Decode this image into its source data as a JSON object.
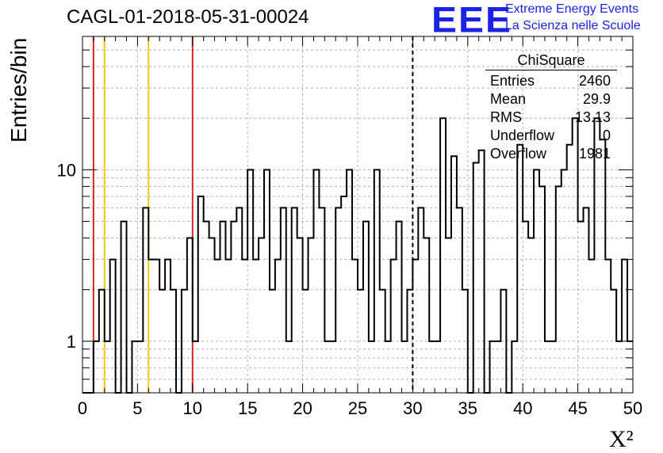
{
  "header": {
    "title": "CAGL-01-2018-05-31-00024",
    "logo_text": "EEE",
    "org_line1": "Extreme Energy Events",
    "org_line2": "La Scienza nelle Scuole"
  },
  "colors": {
    "logo": "#1a22e8",
    "red_line": "#e0211d",
    "yellow_line": "#f2c618",
    "histogram": "#000000",
    "grid": "#b0b0b0"
  },
  "stats_box": {
    "title": "ChiSquare",
    "rows": [
      {
        "label": "Entries",
        "value": "2460"
      },
      {
        "label": "Mean",
        "value": "29.9"
      },
      {
        "label": "RMS",
        "value": "13.13"
      },
      {
        "label": "Underflow",
        "value": "0"
      },
      {
        "label": "Overflow",
        "value": "1981"
      }
    ]
  },
  "chart_data": {
    "type": "histogram",
    "title": "CAGL-01-2018-05-31-00024",
    "xlabel": "X²",
    "ylabel": "Entries/bin",
    "xlim": [
      0,
      50
    ],
    "ylim": [
      0.5,
      60
    ],
    "log_y": true,
    "grid": true,
    "bin_width": 0.5,
    "x_ticks": [
      0,
      5,
      10,
      15,
      20,
      25,
      30,
      35,
      40,
      45,
      50
    ],
    "x_tick_labels": [
      "0",
      "5",
      "10",
      "15",
      "20",
      "25",
      "30",
      "35",
      "40",
      "45",
      "50"
    ],
    "y_tick_labels": [
      {
        "value": 1,
        "label": "1"
      },
      {
        "value": 10,
        "label": "10"
      }
    ],
    "bin_contents": [
      0,
      0,
      1,
      2,
      1,
      3,
      0,
      5,
      0,
      1,
      1,
      6,
      3,
      3,
      2,
      3,
      2,
      0,
      2,
      4,
      1,
      7,
      5,
      4,
      3,
      5,
      3,
      5,
      6,
      3,
      10,
      3,
      4,
      10,
      2,
      3,
      6,
      1,
      6,
      4,
      2,
      4,
      10,
      6,
      1,
      1,
      6,
      7,
      10,
      3,
      2,
      5,
      1,
      10,
      2,
      1,
      3,
      5,
      1,
      2,
      3,
      6,
      4,
      1,
      1,
      20,
      4,
      12,
      6,
      2,
      0,
      11,
      13,
      0,
      1,
      1,
      2,
      0,
      1,
      14,
      5,
      4,
      10,
      8,
      1,
      1,
      8,
      10,
      14,
      20,
      5,
      6,
      3,
      20,
      15,
      3,
      2,
      1,
      3,
      1
    ],
    "vertical_lines": [
      {
        "x": 1,
        "style": "solid",
        "color": "#e0211d"
      },
      {
        "x": 2,
        "style": "solid",
        "color": "#f2c618"
      },
      {
        "x": 6,
        "style": "solid",
        "color": "#f2c618"
      },
      {
        "x": 10,
        "style": "solid",
        "color": "#e0211d"
      },
      {
        "x": 30,
        "style": "dashed",
        "color": "#000000"
      }
    ]
  }
}
